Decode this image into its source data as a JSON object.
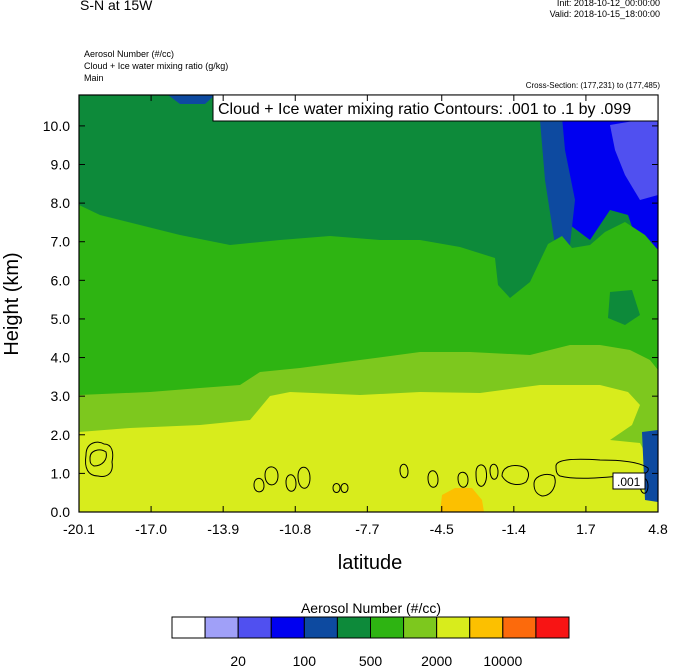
{
  "header": {
    "title": "S-N at 15W",
    "init": "Init: 2018-10-12_00:00:00",
    "valid": "Valid: 2018-10-15_18:00:00",
    "fields": [
      "Aerosol Number   (#/cc)",
      "Cloud + Ice water mixing ratio   (g/kg)",
      "Main"
    ],
    "cross_section": "Cross-Section: (177,231) to (177,485)"
  },
  "chart_data": {
    "type": "heatmap",
    "contour_label": "Cloud + Ice water mixing ratio Contours: .001 to .1 by .099",
    "contour_value_label": ".001",
    "xlabel": "latitude",
    "ylabel": "Height (km)",
    "xticks": [
      "-20.1",
      "-17.0",
      "-13.9",
      "-10.8",
      "-7.7",
      "-4.5",
      "-1.4",
      "1.7",
      "4.8"
    ],
    "yticks": [
      "0.0",
      "1.0",
      "2.0",
      "3.0",
      "4.0",
      "5.0",
      "6.0",
      "7.0",
      "8.0",
      "9.0",
      "10.0"
    ],
    "xlim": [
      -20.1,
      4.8
    ],
    "ylim": [
      0.0,
      10.8
    ],
    "colorbar": {
      "title": "Aerosol Number  (#/cc)",
      "labels": [
        "20",
        "100",
        "500",
        "2000",
        "10000"
      ],
      "colors": [
        "#ffffff",
        "#a0a0f8",
        "#5050f0",
        "#0000f0",
        "#0d4aa0",
        "#0d8a3a",
        "#2eb412",
        "#7dc81e",
        "#d8ec1c",
        "#fcc000",
        "#fc6a0c",
        "#f81414"
      ]
    }
  }
}
